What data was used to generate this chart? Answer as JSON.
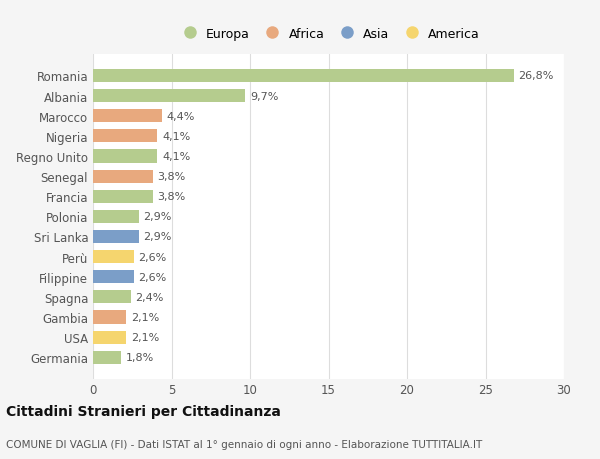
{
  "countries": [
    "Romania",
    "Albania",
    "Marocco",
    "Nigeria",
    "Regno Unito",
    "Senegal",
    "Francia",
    "Polonia",
    "Sri Lanka",
    "Perù",
    "Filippine",
    "Spagna",
    "Gambia",
    "USA",
    "Germania"
  ],
  "values": [
    26.8,
    9.7,
    4.4,
    4.1,
    4.1,
    3.8,
    3.8,
    2.9,
    2.9,
    2.6,
    2.6,
    2.4,
    2.1,
    2.1,
    1.8
  ],
  "labels": [
    "26,8%",
    "9,7%",
    "4,4%",
    "4,1%",
    "4,1%",
    "3,8%",
    "3,8%",
    "2,9%",
    "2,9%",
    "2,6%",
    "2,6%",
    "2,4%",
    "2,1%",
    "2,1%",
    "1,8%"
  ],
  "colors": [
    "#b5cc8e",
    "#b5cc8e",
    "#e8a97e",
    "#e8a97e",
    "#b5cc8e",
    "#e8a97e",
    "#b5cc8e",
    "#b5cc8e",
    "#7b9ec8",
    "#f5d56e",
    "#7b9ec8",
    "#b5cc8e",
    "#e8a97e",
    "#f5d56e",
    "#b5cc8e"
  ],
  "legend": [
    {
      "label": "Europa",
      "color": "#b5cc8e"
    },
    {
      "label": "Africa",
      "color": "#e8a97e"
    },
    {
      "label": "Asia",
      "color": "#7b9ec8"
    },
    {
      "label": "America",
      "color": "#f5d56e"
    }
  ],
  "xlim": [
    0,
    30
  ],
  "xticks": [
    0,
    5,
    10,
    15,
    20,
    25,
    30
  ],
  "title": "Cittadini Stranieri per Cittadinanza",
  "subtitle": "COMUNE DI VAGLIA (FI) - Dati ISTAT al 1° gennaio di ogni anno - Elaborazione TUTTITALIA.IT",
  "bg_color": "#f5f5f5",
  "bar_area_color": "#ffffff",
  "bar_height": 0.65,
  "label_fontsize": 8,
  "ytick_fontsize": 8.5,
  "xtick_fontsize": 8.5,
  "grid_color": "#dddddd",
  "text_color": "#555555",
  "title_color": "#111111"
}
